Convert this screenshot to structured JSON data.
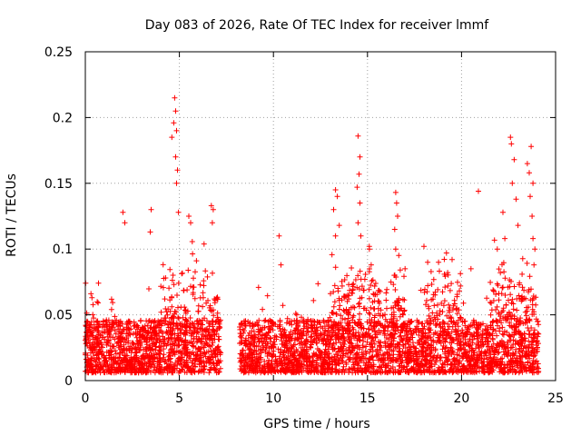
{
  "chart_data": {
    "type": "scatter",
    "title": "Day 083 of 2026, Rate Of TEC Index for receiver lmmf",
    "xlabel": "GPS time / hours",
    "ylabel": "ROTI / TECUs",
    "xlim": [
      0,
      25
    ],
    "ylim": [
      0,
      0.25
    ],
    "x_ticks": [
      0,
      5,
      10,
      15,
      20,
      25
    ],
    "x_tick_labels": [
      "0",
      "5",
      "10",
      "15",
      "20",
      "25"
    ],
    "y_ticks": [
      0,
      0.05,
      0.1,
      0.15,
      0.2,
      0.25
    ],
    "y_tick_labels": [
      "0",
      "0.05",
      "0.1",
      "0.15",
      "0.2",
      "0.25"
    ],
    "grid": true,
    "marker": "+",
    "color": "#ff0000",
    "data_gap_hours": [
      7.2,
      8.2
    ],
    "series": [
      {
        "name": "ROTI",
        "points": [
          [
            0.3,
            0.066
          ],
          [
            0.35,
            0.063
          ],
          [
            0.7,
            0.074
          ],
          [
            2.0,
            0.128
          ],
          [
            2.1,
            0.12
          ],
          [
            3.5,
            0.13
          ],
          [
            3.45,
            0.113
          ],
          [
            4.6,
            0.185
          ],
          [
            4.75,
            0.215
          ],
          [
            4.8,
            0.205
          ],
          [
            4.7,
            0.196
          ],
          [
            4.85,
            0.19
          ],
          [
            4.8,
            0.17
          ],
          [
            4.9,
            0.16
          ],
          [
            4.85,
            0.15
          ],
          [
            4.95,
            0.128
          ],
          [
            5.5,
            0.125
          ],
          [
            5.6,
            0.12
          ],
          [
            6.7,
            0.133
          ],
          [
            6.8,
            0.13
          ],
          [
            6.75,
            0.12
          ],
          [
            10.3,
            0.11
          ],
          [
            10.4,
            0.088
          ],
          [
            13.3,
            0.145
          ],
          [
            13.4,
            0.14
          ],
          [
            13.2,
            0.13
          ],
          [
            13.5,
            0.118
          ],
          [
            13.3,
            0.11
          ],
          [
            14.5,
            0.186
          ],
          [
            14.6,
            0.17
          ],
          [
            14.55,
            0.157
          ],
          [
            14.45,
            0.147
          ],
          [
            14.6,
            0.135
          ],
          [
            14.5,
            0.12
          ],
          [
            14.65,
            0.11
          ],
          [
            15.1,
            0.1
          ],
          [
            15.2,
            0.088
          ],
          [
            16.5,
            0.143
          ],
          [
            16.55,
            0.135
          ],
          [
            16.6,
            0.125
          ],
          [
            16.45,
            0.115
          ],
          [
            16.5,
            0.1
          ],
          [
            17.0,
            0.085
          ],
          [
            18.0,
            0.102
          ],
          [
            18.2,
            0.09
          ],
          [
            19.2,
            0.097
          ],
          [
            19.5,
            0.092
          ],
          [
            20.5,
            0.085
          ],
          [
            20.9,
            0.144
          ],
          [
            21.9,
            0.1
          ],
          [
            22.2,
            0.128
          ],
          [
            22.3,
            0.108
          ],
          [
            22.6,
            0.185
          ],
          [
            22.65,
            0.18
          ],
          [
            22.8,
            0.168
          ],
          [
            22.7,
            0.15
          ],
          [
            22.9,
            0.138
          ],
          [
            23.0,
            0.118
          ],
          [
            23.5,
            0.165
          ],
          [
            23.6,
            0.158
          ],
          [
            23.7,
            0.178
          ],
          [
            23.8,
            0.15
          ],
          [
            23.65,
            0.14
          ],
          [
            23.75,
            0.125
          ],
          [
            23.8,
            0.108
          ],
          [
            23.9,
            0.1
          ],
          [
            23.85,
            0.088
          ]
        ]
      }
    ]
  }
}
